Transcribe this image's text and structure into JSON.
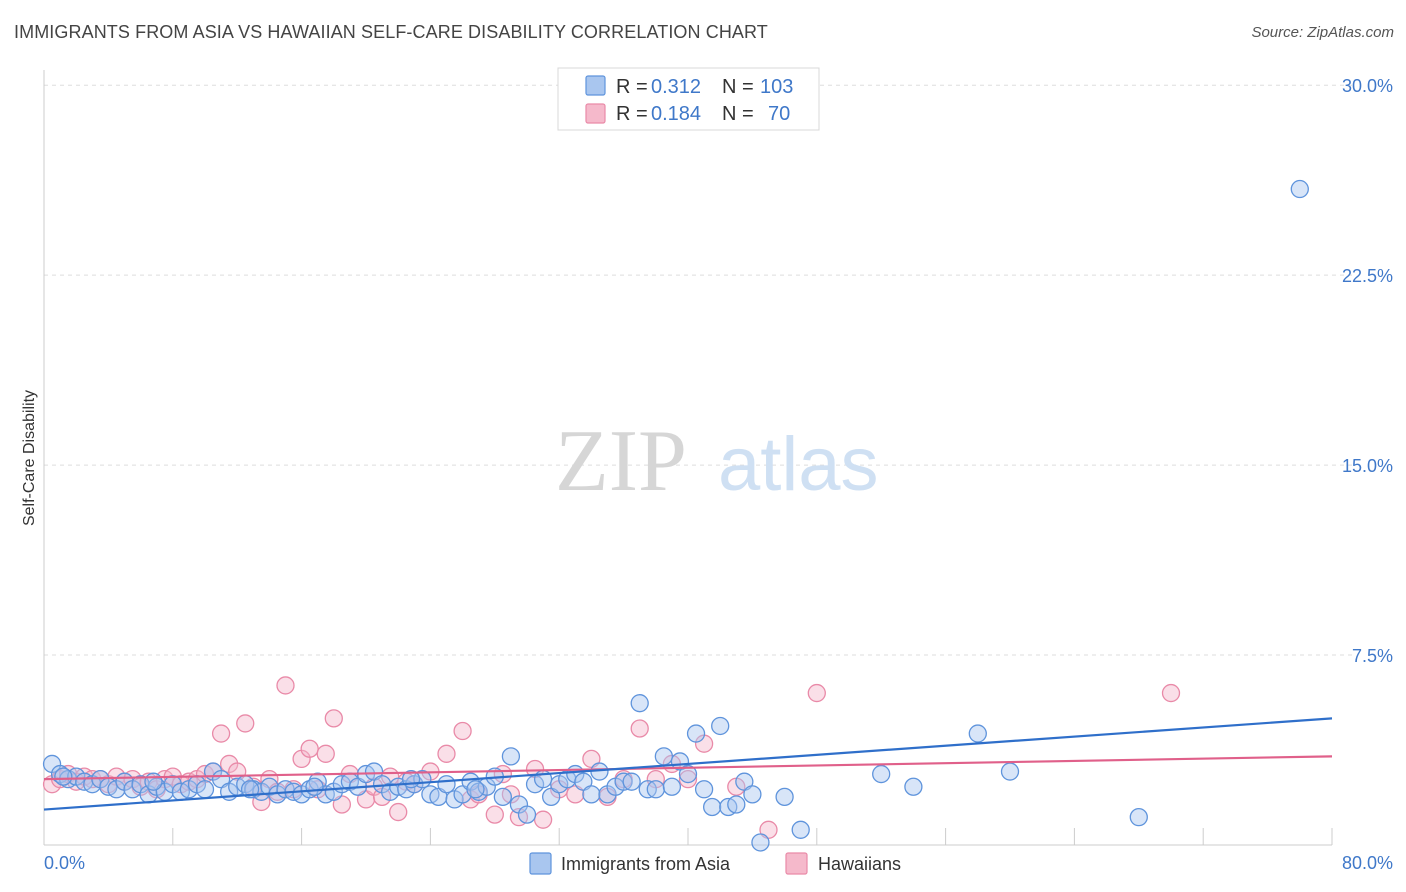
{
  "title": "IMMIGRANTS FROM ASIA VS HAWAIIAN SELF-CARE DISABILITY CORRELATION CHART",
  "source": "Source: ZipAtlas.com",
  "watermark": {
    "zip": "ZIP",
    "atlas": "atlas"
  },
  "colors": {
    "asia_fill": "#a9c6ef",
    "asia_stroke": "#5f94dc",
    "asia_line": "#2f6fca",
    "haw_fill": "#f5b9cb",
    "haw_stroke": "#e98aa8",
    "haw_line": "#e0608a",
    "tick": "#3f78c9",
    "grid": "#dddddd"
  },
  "legend": {
    "rows": [
      {
        "r_label": "R =",
        "r_value": "0.312",
        "n_label": "N =",
        "n_value": "103"
      },
      {
        "r_label": "R =",
        "r_value": "0.184",
        "n_label": "N =",
        "n_value": "70"
      }
    ]
  },
  "chart_data": {
    "type": "scatter",
    "ylabel": "Self-Care Disability",
    "xlim": [
      0,
      80
    ],
    "ylim": [
      0,
      30.6
    ],
    "x_tick_labels": [
      "0.0%",
      "80.0%"
    ],
    "y_ticks": [
      7.5,
      15.0,
      22.5,
      30.0
    ],
    "y_tick_labels": [
      "7.5%",
      "15.0%",
      "22.5%",
      "30.0%"
    ],
    "grid": "horizontal dashed",
    "legend_position": "top-center",
    "series": [
      {
        "name": "Immigrants from Asia",
        "trend": [
          [
            0,
            1.4
          ],
          [
            80,
            5.0
          ]
        ],
        "points": [
          [
            0.5,
            3.2
          ],
          [
            1.0,
            2.8
          ],
          [
            1.5,
            2.6
          ],
          [
            2.0,
            2.7
          ],
          [
            2.5,
            2.5
          ],
          [
            3.0,
            2.4
          ],
          [
            3.5,
            2.6
          ],
          [
            4.0,
            2.3
          ],
          [
            4.5,
            2.2
          ],
          [
            5.0,
            2.5
          ],
          [
            5.5,
            2.2
          ],
          [
            6.0,
            2.4
          ],
          [
            6.5,
            2.0
          ],
          [
            7.0,
            2.3
          ],
          [
            7.5,
            2.1
          ],
          [
            8.0,
            2.4
          ],
          [
            8.5,
            2.1
          ],
          [
            9.0,
            2.2
          ],
          [
            9.5,
            2.4
          ],
          [
            10.0,
            2.2
          ],
          [
            10.5,
            2.9
          ],
          [
            11.0,
            2.6
          ],
          [
            11.5,
            2.1
          ],
          [
            12.0,
            2.3
          ],
          [
            12.5,
            2.4
          ],
          [
            13.0,
            2.2
          ],
          [
            13.5,
            2.1
          ],
          [
            14.0,
            2.3
          ],
          [
            14.5,
            2.0
          ],
          [
            15.0,
            2.2
          ],
          [
            15.5,
            2.1
          ],
          [
            16.0,
            2.0
          ],
          [
            16.5,
            2.2
          ],
          [
            17.0,
            2.5
          ],
          [
            17.5,
            2.0
          ],
          [
            18.0,
            2.1
          ],
          [
            18.5,
            2.4
          ],
          [
            19.0,
            2.5
          ],
          [
            19.5,
            2.3
          ],
          [
            20.0,
            2.8
          ],
          [
            20.5,
            2.9
          ],
          [
            21.0,
            2.4
          ],
          [
            21.5,
            2.1
          ],
          [
            22.0,
            2.3
          ],
          [
            22.5,
            2.2
          ],
          [
            23.0,
            2.4
          ],
          [
            23.5,
            2.6
          ],
          [
            24.0,
            2.0
          ],
          [
            24.5,
            1.9
          ],
          [
            25.0,
            2.4
          ],
          [
            25.5,
            1.8
          ],
          [
            26.0,
            2.0
          ],
          [
            26.5,
            2.5
          ],
          [
            27.0,
            2.1
          ],
          [
            27.5,
            2.3
          ],
          [
            28.0,
            2.7
          ],
          [
            28.5,
            1.9
          ],
          [
            29.0,
            3.5
          ],
          [
            29.5,
            1.6
          ],
          [
            30.0,
            1.2
          ],
          [
            30.5,
            2.4
          ],
          [
            31.0,
            2.6
          ],
          [
            31.5,
            1.9
          ],
          [
            32.0,
            2.4
          ],
          [
            32.5,
            2.6
          ],
          [
            33.0,
            2.8
          ],
          [
            33.5,
            2.5
          ],
          [
            34.0,
            2.0
          ],
          [
            34.5,
            2.9
          ],
          [
            35.0,
            2.0
          ],
          [
            35.5,
            2.3
          ],
          [
            36.0,
            2.5
          ],
          [
            36.5,
            2.5
          ],
          [
            37.0,
            5.6
          ],
          [
            37.5,
            2.2
          ],
          [
            38.0,
            2.2
          ],
          [
            38.5,
            3.5
          ],
          [
            39.0,
            2.3
          ],
          [
            39.5,
            3.3
          ],
          [
            40.0,
            2.8
          ],
          [
            40.5,
            4.4
          ],
          [
            41.0,
            2.2
          ],
          [
            41.5,
            1.5
          ],
          [
            42.0,
            4.7
          ],
          [
            42.5,
            1.5
          ],
          [
            43.0,
            1.6
          ],
          [
            43.5,
            2.5
          ],
          [
            44.0,
            2.0
          ],
          [
            44.5,
            0.1
          ],
          [
            46.0,
            1.9
          ],
          [
            47.0,
            0.6
          ],
          [
            52.0,
            2.8
          ],
          [
            54.0,
            2.3
          ],
          [
            58.0,
            4.4
          ],
          [
            60.0,
            2.9
          ],
          [
            68.0,
            1.1
          ],
          [
            78.0,
            25.9
          ],
          [
            1.2,
            2.7
          ],
          [
            6.8,
            2.5
          ],
          [
            12.8,
            2.2
          ],
          [
            16.8,
            2.3
          ],
          [
            22.8,
            2.6
          ],
          [
            26.8,
            2.2
          ]
        ]
      },
      {
        "name": "Hawaiians",
        "trend": [
          [
            0,
            2.6
          ],
          [
            80,
            3.5
          ]
        ],
        "points": [
          [
            0.5,
            2.4
          ],
          [
            1.0,
            2.6
          ],
          [
            1.5,
            2.8
          ],
          [
            2.0,
            2.5
          ],
          [
            2.5,
            2.7
          ],
          [
            3.0,
            2.6
          ],
          [
            3.5,
            2.6
          ],
          [
            4.0,
            2.4
          ],
          [
            4.5,
            2.7
          ],
          [
            5.0,
            2.5
          ],
          [
            5.5,
            2.6
          ],
          [
            6.0,
            2.3
          ],
          [
            6.5,
            2.5
          ],
          [
            7.0,
            2.2
          ],
          [
            7.5,
            2.6
          ],
          [
            8.0,
            2.7
          ],
          [
            8.5,
            2.4
          ],
          [
            9.0,
            2.5
          ],
          [
            9.5,
            2.6
          ],
          [
            10.0,
            2.8
          ],
          [
            10.5,
            2.9
          ],
          [
            11.0,
            4.4
          ],
          [
            11.5,
            3.2
          ],
          [
            12.0,
            2.9
          ],
          [
            12.5,
            4.8
          ],
          [
            13.0,
            2.3
          ],
          [
            13.5,
            1.7
          ],
          [
            14.0,
            2.6
          ],
          [
            14.5,
            2.1
          ],
          [
            15.0,
            6.3
          ],
          [
            15.5,
            2.2
          ],
          [
            16.0,
            3.4
          ],
          [
            16.5,
            3.8
          ],
          [
            17.0,
            2.2
          ],
          [
            17.5,
            3.6
          ],
          [
            18.0,
            5.0
          ],
          [
            18.5,
            1.6
          ],
          [
            19.0,
            2.8
          ],
          [
            20.0,
            1.8
          ],
          [
            20.5,
            2.3
          ],
          [
            21.0,
            1.9
          ],
          [
            21.5,
            2.7
          ],
          [
            22.0,
            1.3
          ],
          [
            22.5,
            2.5
          ],
          [
            23.0,
            2.4
          ],
          [
            24.0,
            2.9
          ],
          [
            25.0,
            3.6
          ],
          [
            26.0,
            4.5
          ],
          [
            26.5,
            1.8
          ],
          [
            27.0,
            2.0
          ],
          [
            28.0,
            1.2
          ],
          [
            28.5,
            2.8
          ],
          [
            29.0,
            2.0
          ],
          [
            29.5,
            1.1
          ],
          [
            30.5,
            3.0
          ],
          [
            31.0,
            1.0
          ],
          [
            32.0,
            2.2
          ],
          [
            33.0,
            2.0
          ],
          [
            34.0,
            3.4
          ],
          [
            35.0,
            1.9
          ],
          [
            36.0,
            2.6
          ],
          [
            37.0,
            4.6
          ],
          [
            38.0,
            2.6
          ],
          [
            39.0,
            3.2
          ],
          [
            40.0,
            2.6
          ],
          [
            41.0,
            4.0
          ],
          [
            43.0,
            2.3
          ],
          [
            45.0,
            0.6
          ],
          [
            48.0,
            6.0
          ],
          [
            70.0,
            6.0
          ]
        ]
      }
    ],
    "legend_bottom": [
      "Immigrants from Asia",
      "Hawaiians"
    ]
  }
}
